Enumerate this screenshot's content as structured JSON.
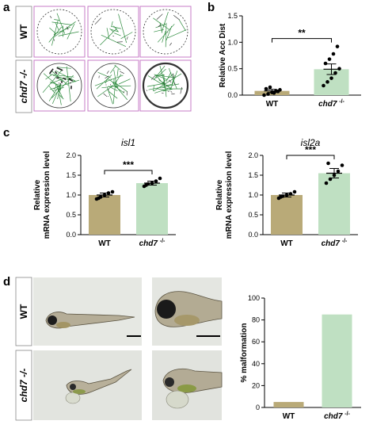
{
  "panel_labels": {
    "a": "a",
    "b": "b",
    "c": "c",
    "d": "d"
  },
  "panel_a": {
    "row_labels": [
      "WT",
      "chd7 -/-"
    ],
    "track_color": "#2e8b3e",
    "frame_color": "#c77bc7"
  },
  "panel_d": {
    "row_labels": [
      "WT",
      "chd7 -/-"
    ]
  },
  "chart_data": [
    {
      "type": "bar",
      "id": "b",
      "title": "",
      "ylabel": "Relative Acc Dist",
      "categories": [
        "WT",
        "chd7 -/-"
      ],
      "values": [
        0.08,
        0.49
      ],
      "errors": [
        0.03,
        0.1
      ],
      "colors": [
        "#b9aa78",
        "#bfe0c2"
      ],
      "points": [
        [
          0.0,
          0.02,
          0.05,
          0.08,
          0.1,
          0.12,
          0.15,
          0.04,
          0.07
        ],
        [
          0.18,
          0.25,
          0.32,
          0.42,
          0.5,
          0.6,
          0.68,
          0.78,
          0.92
        ]
      ],
      "ylim": [
        0,
        1.5
      ],
      "yticks": [
        0.0,
        0.5,
        1.0,
        1.5
      ],
      "ytick_labels": [
        "0.0",
        "0.5",
        "1.0",
        "1.5"
      ],
      "significance": "**"
    },
    {
      "type": "bar",
      "id": "c1",
      "title": "isl1",
      "ylabel": "Relative mRNA expression level",
      "categories": [
        "WT",
        "chd7 -/-"
      ],
      "values": [
        1.0,
        1.3
      ],
      "errors": [
        0.05,
        0.05
      ],
      "colors": [
        "#b9aa78",
        "#bfe0c2"
      ],
      "points": [
        [
          0.9,
          0.95,
          1.0,
          1.05,
          1.08,
          0.92
        ],
        [
          1.22,
          1.28,
          1.3,
          1.35,
          1.42,
          1.25
        ]
      ],
      "ylim": [
        0,
        2.0
      ],
      "yticks": [
        0.0,
        0.5,
        1.0,
        1.5,
        2.0
      ],
      "ytick_labels": [
        "0.0",
        "0.5",
        "1.0",
        "1.5",
        "2.0"
      ],
      "significance": "***"
    },
    {
      "type": "bar",
      "id": "c2",
      "title": "isl2a",
      "ylabel": "Relative mRNA expression level",
      "categories": [
        "WT",
        "chd7 -/-"
      ],
      "values": [
        1.0,
        1.55
      ],
      "errors": [
        0.05,
        0.12
      ],
      "colors": [
        "#b9aa78",
        "#bfe0c2"
      ],
      "points": [
        [
          0.92,
          0.97,
          1.0,
          1.03,
          1.08,
          0.95
        ],
        [
          1.3,
          1.4,
          1.5,
          1.6,
          1.75,
          1.8
        ]
      ],
      "ylim": [
        0,
        2.0
      ],
      "yticks": [
        0.0,
        0.5,
        1.0,
        1.5,
        2.0
      ],
      "ytick_labels": [
        "0.0",
        "0.5",
        "1.0",
        "1.5",
        "2.0"
      ],
      "significance": "***"
    },
    {
      "type": "bar",
      "id": "d",
      "title": "",
      "ylabel": "% malformation",
      "categories": [
        "WT",
        "chd7 -/-"
      ],
      "values": [
        5,
        85
      ],
      "colors": [
        "#b9aa78",
        "#bfe0c2"
      ],
      "ylim": [
        0,
        100
      ],
      "yticks": [
        0,
        20,
        40,
        60,
        80,
        100
      ],
      "ytick_labels": [
        "0",
        "20",
        "40",
        "60",
        "80",
        "100"
      ]
    }
  ]
}
